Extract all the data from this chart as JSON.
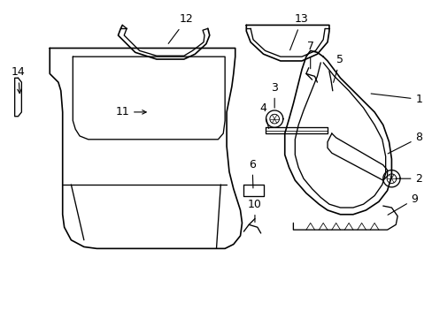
{
  "title": "",
  "bg_color": "#ffffff",
  "line_color": "#000000",
  "line_width": 1.2,
  "figsize": [
    4.89,
    3.6
  ],
  "dpi": 100
}
